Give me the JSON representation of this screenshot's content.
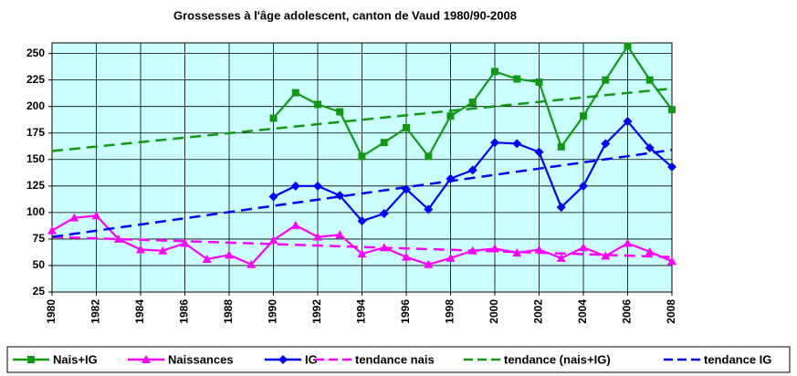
{
  "chart_data": {
    "type": "line",
    "title": "Grossesses à l'âge adolescent, canton de Vaud 1980/90-2008",
    "xlim": [
      1980,
      2008
    ],
    "xticks": [
      1980,
      1982,
      1984,
      1986,
      1988,
      1990,
      1992,
      1994,
      1996,
      1998,
      2000,
      2002,
      2004,
      2006,
      2008
    ],
    "ylim": [
      25,
      260
    ],
    "yticks": [
      25,
      50,
      75,
      100,
      125,
      150,
      175,
      200,
      225,
      250
    ],
    "grid": true,
    "legend": "bottom",
    "background": "#ccffff",
    "series": [
      {
        "name": "Nais+IG",
        "color": "#119911",
        "marker": "square",
        "dash": false,
        "x": [
          1990,
          1991,
          1992,
          1993,
          1994,
          1995,
          1996,
          1997,
          1998,
          1999,
          2000,
          2001,
          2002,
          2003,
          2004,
          2005,
          2006,
          2007,
          2008
        ],
        "values": [
          189,
          213,
          202,
          195,
          153,
          166,
          180,
          153,
          191,
          204,
          233,
          226,
          223,
          162,
          191,
          225,
          257,
          225,
          197
        ]
      },
      {
        "name": "Naissances",
        "color": "#ff00ff",
        "marker": "triangle",
        "dash": false,
        "x": [
          1980,
          1981,
          1982,
          1983,
          1984,
          1985,
          1986,
          1987,
          1988,
          1989,
          1990,
          1991,
          1992,
          1993,
          1994,
          1995,
          1996,
          1997,
          1998,
          1999,
          2000,
          2001,
          2002,
          2003,
          2004,
          2005,
          2006,
          2007,
          2008
        ],
        "values": [
          83,
          95,
          97,
          75,
          65,
          64,
          71,
          56,
          60,
          51,
          74,
          88,
          77,
          79,
          61,
          67,
          58,
          51,
          57,
          64,
          66,
          62,
          65,
          57,
          67,
          59,
          71,
          63,
          54
        ]
      },
      {
        "name": "IG",
        "color": "#0000ff",
        "marker": "diamond",
        "dash": false,
        "x": [
          1990,
          1991,
          1992,
          1993,
          1994,
          1995,
          1996,
          1997,
          1998,
          1999,
          2000,
          2001,
          2002,
          2003,
          2004,
          2005,
          2006,
          2007,
          2008
        ],
        "values": [
          115,
          125,
          125,
          116,
          92,
          99,
          122,
          103,
          132,
          140,
          166,
          165,
          157,
          105,
          125,
          165,
          186,
          161,
          143
        ]
      },
      {
        "name": "tendance nais",
        "color": "#ff00ff",
        "marker": "none",
        "dash": true,
        "x": [
          1980,
          2008
        ],
        "values": [
          77,
          58
        ]
      },
      {
        "name": "tendance (nais+IG)",
        "color": "#119911",
        "marker": "none",
        "dash": true,
        "x": [
          1980,
          2008
        ],
        "values": [
          158,
          217
        ]
      },
      {
        "name": "tendance IG",
        "color": "#0000ff",
        "marker": "none",
        "dash": true,
        "x": [
          1980,
          2008
        ],
        "values": [
          77,
          159
        ]
      }
    ]
  }
}
